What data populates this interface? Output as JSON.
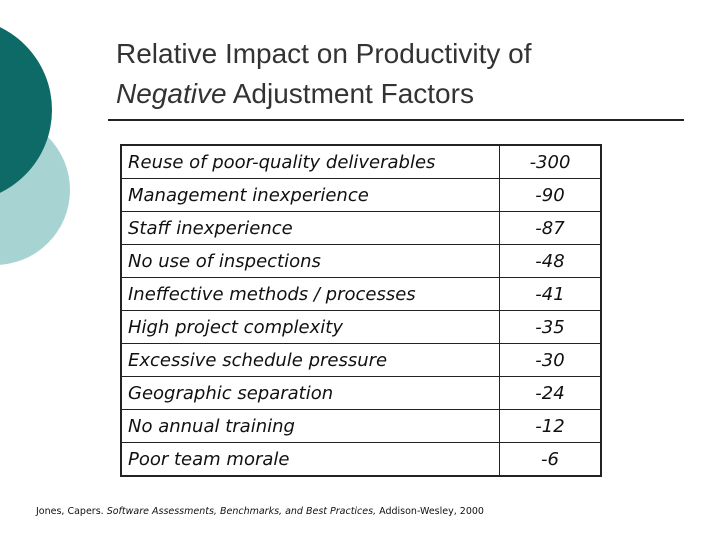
{
  "header": {
    "title_line1": "Relative Impact on Productivity of",
    "title_emphasis": "Negative",
    "title_rest": "Adjustment Factors"
  },
  "table": {
    "rows": [
      [
        "Reuse of poor-quality deliverables",
        -300
      ],
      [
        "Management inexperience",
        -90
      ],
      [
        "Staff inexperience",
        -87
      ],
      [
        "No use of inspections",
        -48
      ],
      [
        "Ineffective methods / processes",
        -41
      ],
      [
        "High project complexity",
        -35
      ],
      [
        "Excessive schedule pressure",
        -30
      ],
      [
        "Geographic separation",
        -24
      ],
      [
        "No annual training",
        -12
      ],
      [
        "Poor team morale",
        -6
      ]
    ]
  },
  "citation": {
    "author": "Jones, Capers.",
    "work": "Software Assessments, Benchmarks, and Best Practices,",
    "publisher": "Addison-Wesley, 2000"
  }
}
